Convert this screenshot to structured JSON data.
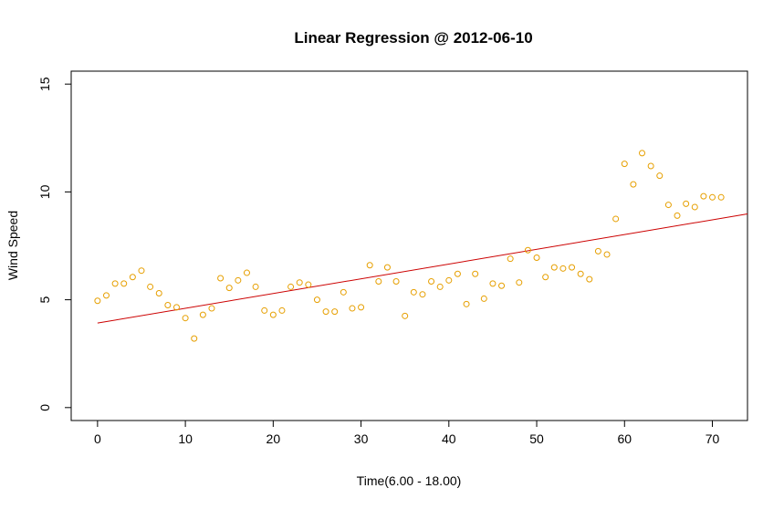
{
  "chart_data": {
    "type": "scatter",
    "title": "Linear Regression @ 2012-06-10",
    "xlabel": "Time(6.00 - 18.00)",
    "ylabel": "Wind Speed",
    "xlim": [
      -3,
      74
    ],
    "ylim": [
      -0.6,
      15.6
    ],
    "xticks": [
      0,
      10,
      20,
      30,
      40,
      50,
      60,
      70
    ],
    "yticks": [
      0,
      5,
      10,
      15
    ],
    "grid": false,
    "series": [
      {
        "kind": "points",
        "color": "#E69F00",
        "x": [
          0,
          1,
          2,
          3,
          4,
          5,
          6,
          7,
          8,
          9,
          10,
          11,
          12,
          13,
          14,
          15,
          16,
          17,
          18,
          19,
          20,
          21,
          22,
          23,
          24,
          25,
          26,
          27,
          28,
          29,
          30,
          31,
          32,
          33,
          34,
          35,
          36,
          37,
          38,
          39,
          40,
          41,
          42,
          43,
          44,
          45,
          46,
          47,
          48,
          49,
          50,
          51,
          52,
          53,
          54,
          55,
          56,
          57,
          58,
          59,
          60,
          61,
          62,
          63,
          64,
          65,
          66,
          67,
          68,
          69,
          70,
          71
        ],
        "y": [
          4.95,
          5.2,
          5.75,
          5.75,
          6.05,
          6.35,
          5.6,
          5.3,
          4.75,
          4.65,
          4.15,
          3.2,
          4.3,
          4.6,
          6.0,
          5.55,
          5.9,
          6.25,
          5.6,
          4.5,
          4.3,
          4.5,
          5.6,
          5.8,
          5.7,
          5.0,
          4.45,
          4.45,
          5.35,
          4.6,
          4.65,
          6.6,
          5.85,
          6.5,
          5.85,
          4.25,
          5.35,
          5.25,
          5.85,
          5.6,
          5.9,
          6.2,
          4.8,
          6.2,
          5.05,
          5.75,
          5.65,
          6.9,
          5.8,
          7.3,
          6.95,
          6.05,
          6.5,
          6.45,
          6.5,
          6.2,
          5.95,
          7.25,
          7.1,
          8.75,
          11.3,
          10.35,
          11.8,
          11.2,
          10.75,
          9.4,
          8.9,
          9.45,
          9.3,
          9.8,
          9.75,
          9.75
        ]
      },
      {
        "kind": "regression-line",
        "color": "#CC0000",
        "x": [
          0,
          74
        ],
        "y": [
          3.92,
          8.98
        ]
      }
    ]
  }
}
